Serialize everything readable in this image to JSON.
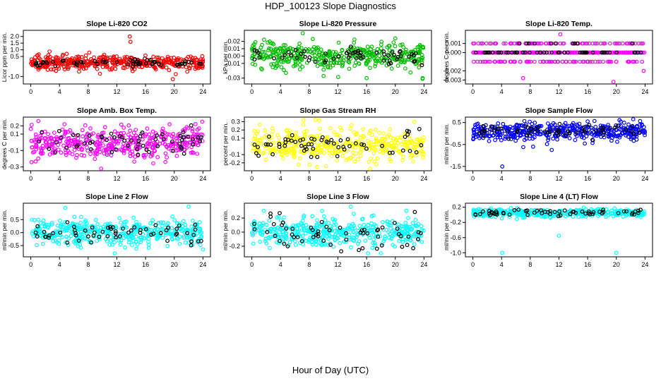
{
  "figure": {
    "title": "HDP_100123  Slope Diagnostics",
    "xlabel": "Hour of Day (UTC)"
  },
  "chart_data": [
    {
      "type": "scatter",
      "title": "Slope Li-820 CO2",
      "ylabel": "Licor ppm per min.",
      "color": "#ff0000",
      "overlay_color": "#000000",
      "xlim": [
        0,
        24
      ],
      "xticks": [
        0,
        4,
        8,
        12,
        16,
        20,
        24
      ],
      "ylim": [
        -1.4,
        2.3
      ],
      "yticks": [
        -1.0,
        0.5,
        1.0,
        1.5,
        2.0
      ],
      "ytick_labels": [
        "-1.0",
        "0.5",
        "1.0",
        "1.5",
        "2.0"
      ],
      "spread": 0.25,
      "bias": 0.05,
      "overlay_spread": 0.12,
      "outliers": [
        {
          "x": 13.8,
          "y": 2.0
        },
        {
          "x": 13.9,
          "y": 1.6
        },
        {
          "x": 5.0,
          "y": 0.7
        },
        {
          "x": 19.8,
          "y": -1.2
        },
        {
          "x": 14.2,
          "y": -0.6
        }
      ]
    },
    {
      "type": "scatter",
      "title": "Slope Li-820 Pressure",
      "ylabel": "kPa per min.",
      "color": "#00c000",
      "overlay_color": "#000000",
      "xlim": [
        0,
        24
      ],
      "xticks": [
        0,
        4,
        8,
        12,
        16,
        20,
        24
      ],
      "ylim": [
        -0.035,
        0.032
      ],
      "yticks": [
        -0.03,
        -0.01,
        0.0,
        0.01,
        0.02
      ],
      "ytick_labels": [
        "-0.03",
        "-0.01",
        "0.00",
        "0.01",
        "0.02"
      ],
      "spread": 0.009,
      "bias": 0.001,
      "overlay_spread": 0.006,
      "outliers": [
        {
          "x": 7.1,
          "y": 0.031
        },
        {
          "x": 10.0,
          "y": -0.027
        },
        {
          "x": 16.0,
          "y": -0.03
        },
        {
          "x": 23.8,
          "y": -0.03
        },
        {
          "x": 20.0,
          "y": 0.024
        }
      ]
    },
    {
      "type": "scatter",
      "title": "Slope Li-820 Temp.",
      "ylabel": "degrees C per min.",
      "color": "#ff00ff",
      "overlay_color": "#000000",
      "xlim": [
        0,
        24
      ],
      "xticks": [
        0,
        4,
        8,
        12,
        16,
        20,
        24
      ],
      "ylim": [
        -0.0032,
        0.0022
      ],
      "yticks": [
        -0.003,
        -0.002,
        0.0,
        0.001
      ],
      "ytick_labels": [
        "-0.003",
        "-0.002",
        "0.000",
        "0.001"
      ],
      "quantized": [
        0.0,
        0.001,
        -0.001,
        0.0,
        0.0
      ],
      "outliers": [
        {
          "x": 12.2,
          "y": 0.002
        },
        {
          "x": 7.0,
          "y": -0.0028
        },
        {
          "x": 19.6,
          "y": -0.0032
        },
        {
          "x": 23.8,
          "y": -0.002
        }
      ]
    },
    {
      "type": "scatter",
      "title": "Slope Amb. Box Temp.",
      "ylabel": "degrees C per min.",
      "color": "#ff00ff",
      "overlay_color": "#000000",
      "xlim": [
        0,
        24
      ],
      "xticks": [
        0,
        4,
        8,
        12,
        16,
        20,
        24
      ],
      "ylim": [
        -0.32,
        0.28
      ],
      "yticks": [
        -0.3,
        -0.1,
        0.1,
        0.2
      ],
      "ytick_labels": [
        "-0.3",
        "-0.1",
        "0.1",
        "0.2"
      ],
      "spread": 0.1,
      "bias": 0.0,
      "overlay_spread": 0.08,
      "outliers": [
        {
          "x": 9.8,
          "y": -0.33
        },
        {
          "x": 23.9,
          "y": 0.25
        }
      ]
    },
    {
      "type": "scatter",
      "title": "Slope Gas Stream RH",
      "ylabel": "percent per min.",
      "color": "#ffff00",
      "overlay_color": "#000000",
      "xlim": [
        0,
        24
      ],
      "xticks": [
        0,
        4,
        8,
        12,
        16,
        20,
        24
      ],
      "ylim": [
        -0.27,
        0.33
      ],
      "yticks": [
        -0.2,
        -0.1,
        0.1,
        0.2,
        0.3
      ],
      "ytick_labels": [
        "-0.2",
        "-0.1",
        "0.1",
        "0.2",
        "0.3"
      ],
      "spread": 0.09,
      "bias": 0.02,
      "overlay_spread": 0.08,
      "outliers": [
        {
          "x": 7.2,
          "y": 0.32
        },
        {
          "x": 13.9,
          "y": 0.26
        },
        {
          "x": 9.1,
          "y": -0.25
        }
      ]
    },
    {
      "type": "scatter",
      "title": "Slope Sample Flow",
      "ylabel": "ml/min per min.",
      "color": "#0000ff",
      "overlay_color": "#000000",
      "xlim": [
        0,
        24
      ],
      "xticks": [
        0,
        4,
        8,
        12,
        16,
        20,
        24
      ],
      "ylim": [
        -1.6,
        0.65
      ],
      "yticks": [
        -1.5,
        -0.5,
        0.5
      ],
      "ytick_labels": [
        "-1.5",
        "-0.5",
        "0.5"
      ],
      "spread": 0.2,
      "bias": 0.1,
      "overlay_spread": 0.15,
      "outliers": [
        {
          "x": 4.1,
          "y": -1.5
        },
        {
          "x": 11.0,
          "y": -0.75
        },
        {
          "x": 8.4,
          "y": -0.6
        },
        {
          "x": 16.0,
          "y": 0.55
        }
      ]
    },
    {
      "type": "scatter",
      "title": "Slope Line 2 Flow",
      "ylabel": "ml/min per min.",
      "color": "#00ffff",
      "overlay_color": "#000000",
      "xlim": [
        0,
        24
      ],
      "xticks": [
        0,
        4,
        8,
        12,
        16,
        20,
        24
      ],
      "ylim": [
        -0.85,
        1.05
      ],
      "yticks": [
        -0.5,
        0.0,
        0.5
      ],
      "ytick_labels": [
        "-0.5",
        "0.0",
        "0.5"
      ],
      "spread": 0.25,
      "bias": 0.0,
      "overlay_spread": 0.18,
      "outliers": [
        {
          "x": 4.8,
          "y": 0.95
        },
        {
          "x": 11.7,
          "y": -0.8
        },
        {
          "x": 22.0,
          "y": 1.0
        },
        {
          "x": 24.0,
          "y": -0.65
        }
      ]
    },
    {
      "type": "scatter",
      "title": "Slope Line 3 Flow",
      "ylabel": "ml/min per min.",
      "color": "#00ffff",
      "overlay_color": "#000000",
      "xlim": [
        0,
        24
      ],
      "xticks": [
        0,
        4,
        8,
        12,
        16,
        20,
        24
      ],
      "ylim": [
        -0.32,
        0.38
      ],
      "yticks": [
        -0.2,
        0.0,
        0.2
      ],
      "ytick_labels": [
        "-0.2",
        "0.0",
        "0.2"
      ],
      "spread": 0.1,
      "bias": 0.0,
      "overlay_spread": 0.12,
      "outliers": [
        {
          "x": 13.8,
          "y": 0.36
        },
        {
          "x": 16.2,
          "y": -0.3
        },
        {
          "x": 18.0,
          "y": -0.3
        },
        {
          "x": 9.8,
          "y": 0.3
        }
      ]
    },
    {
      "type": "scatter",
      "title": "Slope Line 4 (LT) Flow",
      "ylabel": "ml/min per min.",
      "color": "#00ffff",
      "overlay_color": "#000000",
      "xlim": [
        0,
        24
      ],
      "xticks": [
        0,
        4,
        8,
        12,
        16,
        20,
        24
      ],
      "ylim": [
        -1.05,
        0.25
      ],
      "yticks": [
        -1.0,
        -0.6,
        -0.2,
        0.2
      ],
      "ytick_labels": [
        "-1.0",
        "-0.6",
        "-0.2",
        "0.2"
      ],
      "spread": 0.05,
      "bias": 0.05,
      "overlay_spread": 0.04,
      "outliers": [
        {
          "x": 4.1,
          "y": -1.0
        },
        {
          "x": 20.0,
          "y": -1.0
        },
        {
          "x": 12.0,
          "y": -0.55
        }
      ]
    }
  ]
}
